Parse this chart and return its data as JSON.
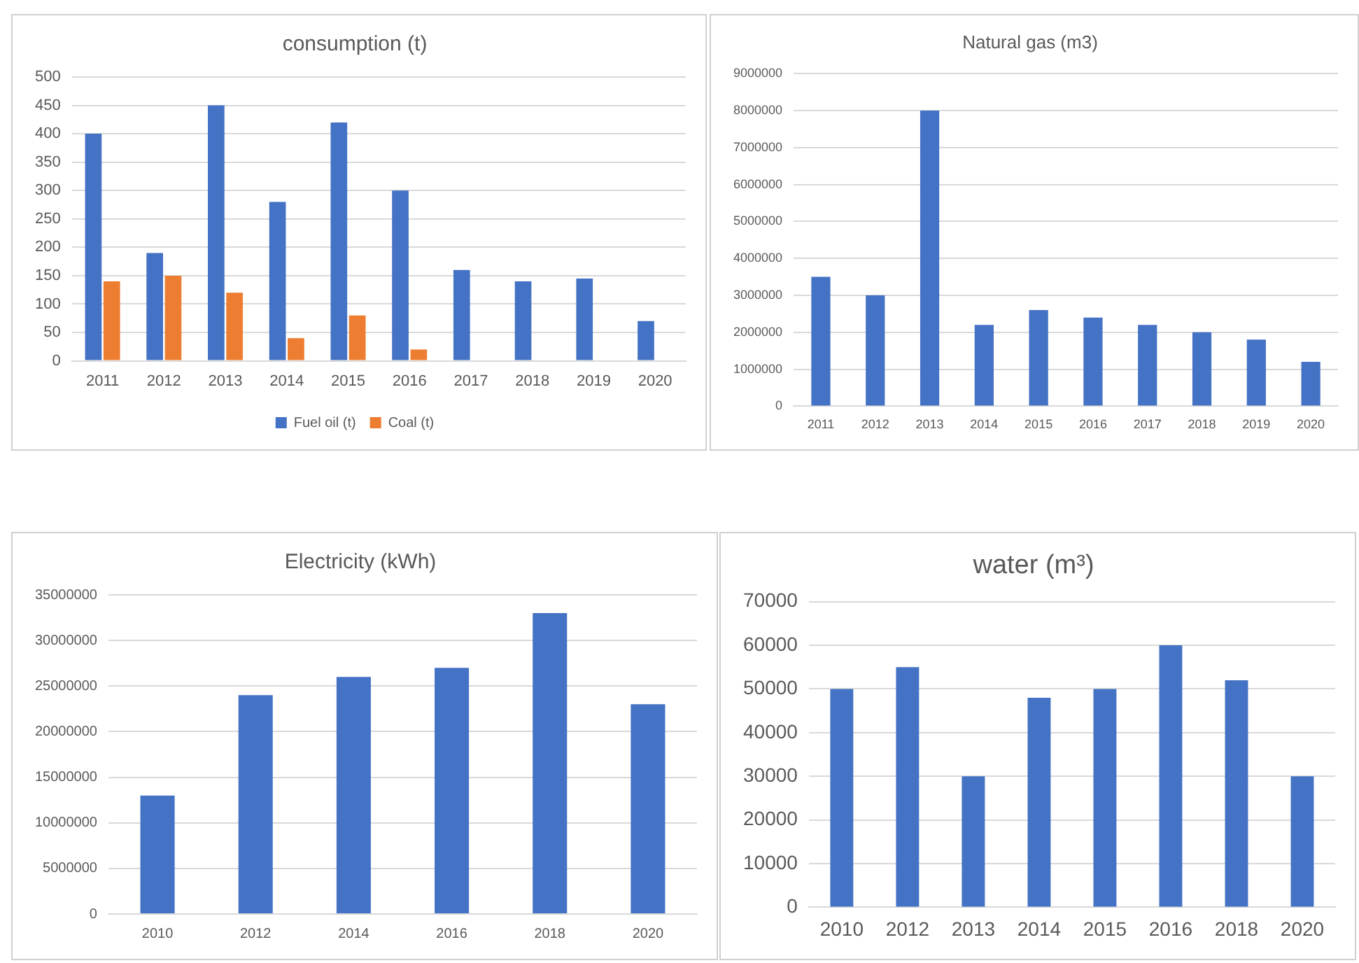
{
  "chart_data": [
    {
      "type": "bar",
      "title": "consumption (t)",
      "categories": [
        "2011",
        "2012",
        "2013",
        "2014",
        "2015",
        "2016",
        "2017",
        "2018",
        "2019",
        "2020"
      ],
      "series": [
        {
          "name": "Fuel oil (t)",
          "color": "#4472c4",
          "values": [
            400,
            190,
            450,
            280,
            420,
            300,
            160,
            140,
            145,
            70
          ]
        },
        {
          "name": "Coal (t)",
          "color": "#ed7d31",
          "values": [
            140,
            150,
            120,
            40,
            80,
            20,
            null,
            null,
            null,
            null
          ]
        }
      ],
      "ylim": [
        0,
        500
      ],
      "yticks": [
        0,
        50,
        100,
        150,
        200,
        250,
        300,
        350,
        400,
        450,
        500
      ],
      "grid": "y",
      "legend": "bottom"
    },
    {
      "type": "bar",
      "title": "Natural gas (m3)",
      "categories": [
        "2011",
        "2012",
        "2013",
        "2014",
        "2015",
        "2016",
        "2017",
        "2018",
        "2019",
        "2020"
      ],
      "series": [
        {
          "color": "#4472c4",
          "values": [
            3500000,
            3000000,
            8000000,
            2200000,
            2600000,
            2400000,
            2200000,
            2000000,
            1800000,
            1200000
          ]
        }
      ],
      "ylim": [
        0,
        9000000
      ],
      "yticks": [
        0,
        1000000,
        2000000,
        3000000,
        4000000,
        5000000,
        6000000,
        7000000,
        8000000,
        9000000
      ],
      "grid": "y"
    },
    {
      "type": "bar",
      "title": "Electricity (kWh)",
      "categories": [
        "2010",
        "2012",
        "2014",
        "2016",
        "2018",
        "2020"
      ],
      "series": [
        {
          "color": "#4472c4",
          "values": [
            13000000,
            24000000,
            26000000,
            27000000,
            33000000,
            23000000
          ]
        }
      ],
      "ylim": [
        0,
        35000000
      ],
      "yticks": [
        0,
        5000000,
        10000000,
        15000000,
        20000000,
        25000000,
        30000000,
        35000000
      ],
      "grid": "y"
    },
    {
      "type": "bar",
      "title": "water (m³)",
      "categories": [
        "2010",
        "2012",
        "2013",
        "2014",
        "2015",
        "2016",
        "2018",
        "2020"
      ],
      "series": [
        {
          "color": "#4472c4",
          "values": [
            50000,
            55000,
            30000,
            48000,
            50000,
            60000,
            52000,
            30000
          ]
        }
      ],
      "ylim": [
        0,
        70000
      ],
      "yticks": [
        0,
        10000,
        20000,
        30000,
        40000,
        50000,
        60000,
        70000
      ],
      "grid": "y"
    }
  ]
}
